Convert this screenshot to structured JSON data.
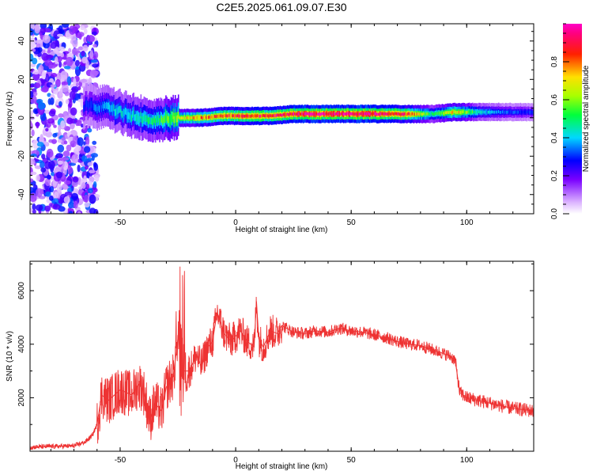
{
  "figure": {
    "title": "C2E5.2025.061.09.07.E30"
  },
  "chart_data": [
    {
      "type": "heatmap",
      "title": "",
      "xlabel": "Height of straight line (km)",
      "ylabel": "Frequency (Hz)",
      "xlim": [
        -89,
        129
      ],
      "ylim": [
        -50,
        49
      ],
      "xticks": [
        -50,
        0,
        50,
        100
      ],
      "yticks": [
        -40,
        -20,
        0,
        20,
        40
      ],
      "colorbar": {
        "label": "Normalized spectral amplitude",
        "range": [
          0.0,
          1.0
        ],
        "ticks": [
          0.0,
          0.2,
          0.4,
          0.6,
          0.8
        ],
        "tick_labels": [
          "0.0",
          "0.2",
          "0.4",
          "0.6",
          "0.8"
        ],
        "colormap": "rainbow (white-violet-blue-cyan-green-yellow-red-magenta)"
      },
      "description_ridge": {
        "x": [
          -65,
          -55,
          -45,
          -35,
          -25,
          -15,
          -5,
          5,
          15,
          25,
          35,
          45,
          55,
          65,
          75,
          85,
          95,
          105,
          115,
          125
        ],
        "center_frequency_hz": [
          6,
          5,
          1,
          -1,
          0,
          0,
          1,
          1,
          1,
          2,
          2,
          2,
          2,
          2,
          2,
          2,
          3,
          3,
          3,
          3
        ],
        "peak_amplitude": [
          0.3,
          0.4,
          0.45,
          0.5,
          0.65,
          0.8,
          0.85,
          0.9,
          0.9,
          0.95,
          1.0,
          1.0,
          1.0,
          0.95,
          0.85,
          0.5,
          0.75,
          0.45,
          0.35,
          0.3
        ]
      },
      "noise_region_x": [
        -89,
        -60
      ]
    },
    {
      "type": "line",
      "title": "",
      "xlabel": "Height of straight line (km)",
      "ylabel": "SNR (10 * v/v)",
      "xlim": [
        -89,
        129
      ],
      "ylim": [
        0,
        7100
      ],
      "xticks": [
        -50,
        0,
        50,
        100
      ],
      "yticks": [
        2000,
        4000,
        6000
      ],
      "line_color": "#ee3333",
      "series": [
        {
          "x": [
            -89,
            -80,
            -70,
            -65,
            -62,
            -60,
            -58,
            -55,
            -50,
            -45,
            -42,
            -40,
            -37,
            -35,
            -32,
            -30,
            -27,
            -25,
            -24,
            -23,
            -20,
            -17,
            -15,
            -12,
            -10,
            -8,
            -5,
            -2,
            0,
            2,
            5,
            8,
            9,
            10,
            12,
            15,
            18,
            20,
            25,
            30,
            35,
            40,
            45,
            50,
            55,
            60,
            65,
            70,
            75,
            80,
            85,
            90,
            93,
            95,
            97,
            100,
            105,
            110,
            115,
            120,
            125,
            129
          ],
          "values": [
            150,
            180,
            200,
            350,
            600,
            1000,
            2100,
            1900,
            2300,
            2100,
            2500,
            2300,
            1200,
            1800,
            1500,
            2400,
            2800,
            4200,
            4800,
            3000,
            3000,
            3600,
            3200,
            3900,
            4100,
            5200,
            4400,
            4100,
            4300,
            4500,
            4100,
            3900,
            5600,
            4200,
            3900,
            4500,
            4400,
            4700,
            4450,
            4400,
            4500,
            4450,
            4600,
            4500,
            4450,
            4350,
            4250,
            4100,
            4000,
            3950,
            3800,
            3650,
            3550,
            3400,
            2200,
            2000,
            1900,
            1800,
            1700,
            1600,
            1550,
            1500
          ]
        }
      ]
    }
  ]
}
